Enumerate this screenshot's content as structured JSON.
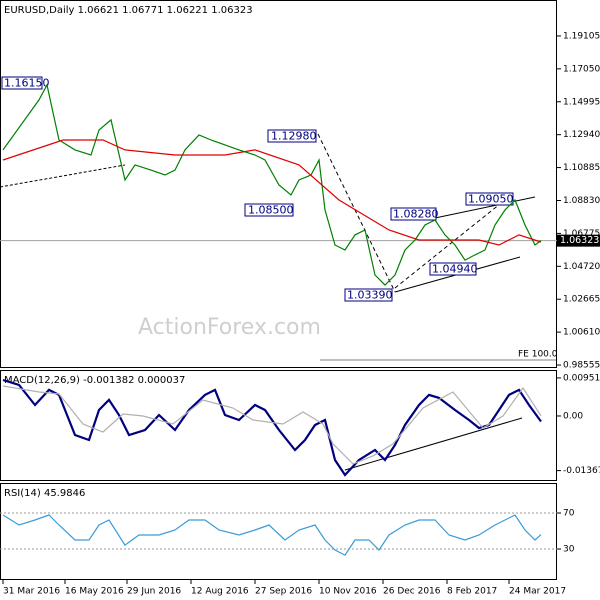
{
  "chart_data": [
    {
      "type": "line",
      "title": "EURUSD,Daily  1.06621 1.06771 1.06221 1.06323",
      "xlim": [
        -1.5,
        277
      ],
      "ylim": [
        0.9837,
        1.2135
      ],
      "yticks": [
        {
          "value": 1.19105,
          "label": "1.19105"
        },
        {
          "value": 1.1705,
          "label": "1.17050"
        },
        {
          "value": 1.14995,
          "label": "1.14995"
        },
        {
          "value": 1.1294,
          "label": "1.12940"
        },
        {
          "value": 1.10885,
          "label": "1.10885"
        },
        {
          "value": 1.0883,
          "label": "1.08830"
        },
        {
          "value": 1.06775,
          "label": "1.06775"
        },
        {
          "value": 1.0472,
          "label": "1.04720"
        },
        {
          "value": 1.02665,
          "label": "1.02665"
        },
        {
          "value": 1.0061,
          "label": "1.00610"
        },
        {
          "value": 0.98555,
          "label": "0.98555"
        }
      ],
      "last_price": 1.06323,
      "annotations": [
        "1.16150",
        "1.12980",
        "1.08500",
        "1.08280",
        "1.09050",
        "1.04940",
        "1.03390",
        "FE 100.0",
        "ActionForex.com"
      ],
      "series": [
        {
          "color": "#008000",
          "x": [
            0,
            18,
            22,
            28,
            36,
            44,
            48,
            54,
            61,
            66,
            74,
            81,
            86,
            91,
            98,
            104,
            111,
            118,
            126,
            131,
            138,
            144,
            148,
            154,
            158,
            161,
            166,
            171,
            176,
            181,
            186,
            191,
            196,
            201,
            206,
            211,
            216,
            221,
            226,
            231,
            236,
            241,
            246,
            251,
            256,
            261,
            266,
            269
          ],
          "values": [
            1.1199,
            1.1511,
            1.1604,
            1.1261,
            1.1199,
            1.1167,
            1.1323,
            1.1386,
            1.1011,
            1.1105,
            1.1073,
            1.1042,
            1.1073,
            1.1199,
            1.1292,
            1.1261,
            1.123,
            1.1199,
            1.1167,
            1.1136,
            1.098,
            1.0917,
            1.1011,
            1.1042,
            1.1136,
            1.0824,
            1.0605,
            1.0574,
            1.0668,
            1.0699,
            1.0418,
            1.0355,
            1.0418,
            1.0574,
            1.0636,
            1.073,
            1.0761,
            1.0668,
            1.0605,
            1.0511,
            1.0543,
            1.0574,
            1.073,
            1.0824,
            1.0886,
            1.073,
            1.0605,
            1.06323
          ]
        },
        {
          "color": "#e00000",
          "x": [
            0,
            30,
            50,
            61,
            86,
            111,
            126,
            148,
            168,
            193,
            208,
            238,
            248,
            258,
            269
          ],
          "values": [
            1.1136,
            1.1261,
            1.1261,
            1.1199,
            1.1167,
            1.1167,
            1.1199,
            1.1105,
            1.0886,
            1.0699,
            1.0636,
            1.0636,
            1.0605,
            1.0668,
            1.0624
          ]
        }
      ]
    },
    {
      "type": "line",
      "title": "MACD(12,26,9) -0.001382 0.000037",
      "xlim": [
        -1.5,
        277
      ],
      "ylim": [
        -0.01627,
        0.0115
      ],
      "yticks": [
        0.009514,
        {
          "value": 0,
          "label": "0.00"
        },
        -0.013671
      ],
      "series": [
        {
          "color": "#000080",
          "x": [
            0,
            8,
            16,
            23,
            28,
            36,
            43,
            48,
            53,
            58,
            63,
            71,
            78,
            86,
            93,
            101,
            106,
            111,
            118,
            126,
            131,
            138,
            146,
            151,
            156,
            161,
            166,
            171,
            178,
            186,
            191,
            196,
            201,
            208,
            213,
            218,
            226,
            233,
            238,
            243,
            248,
            253,
            258,
            263,
            269
          ],
          "values": [
            0.00901,
            0.00776,
            0.00275,
            0.00651,
            0.00526,
            -0.00476,
            -0.00601,
            0.0015,
            0.00401,
            0.00025,
            -0.00476,
            -0.00351,
            0.00025,
            -0.00351,
            0.0015,
            0.00526,
            0.00651,
            0.00025,
            -0.001,
            0.00275,
            0.0015,
            -0.00351,
            -0.00851,
            -0.00601,
            -0.00225,
            -0.001,
            -0.01102,
            -0.01477,
            -0.01102,
            -0.00851,
            -0.01102,
            -0.00726,
            -0.00225,
            0.00275,
            0.00526,
            0.00451,
            0.0015,
            -0.001,
            -0.003,
            -0.00225,
            0.0015,
            0.00526,
            0.00651,
            0.00275,
            -0.00138
          ]
        },
        {
          "color": "#b0b0b0",
          "x": [
            0,
            18,
            28,
            40,
            50,
            60,
            70,
            85,
            100,
            115,
            125,
            140,
            150,
            160,
            165,
            175,
            185,
            195,
            210,
            225,
            240,
            250,
            260,
            269
          ],
          "values": [
            0.0075,
            0.006,
            0.0055,
            -0.002,
            -0.004,
            0.0005,
            0.0,
            -0.002,
            0.004,
            0.002,
            -0.001,
            -0.002,
            0.001,
            -0.002,
            -0.007,
            -0.012,
            -0.01,
            -0.007,
            0.002,
            0.006,
            -0.003,
            0.0,
            0.007,
            3.7e-05
          ]
        }
      ]
    },
    {
      "type": "line",
      "title": "RSI(14) 45.9846",
      "xlim": [
        -1.5,
        277
      ],
      "ylim": [
        -4.4,
        103.3
      ],
      "yticks": [
        70,
        30
      ],
      "grid": true,
      "xticks": [
        {
          "value": 0,
          "label": "31 Mar 2016"
        },
        {
          "value": 31,
          "label": "16 May 2016"
        },
        {
          "value": 62,
          "label": "29 Jun 2016"
        },
        {
          "value": 94,
          "label": "12 Aug 2016"
        },
        {
          "value": 126,
          "label": "27 Sep 2016"
        },
        {
          "value": 158,
          "label": "10 Nov 2016"
        },
        {
          "value": 190,
          "label": "26 Dec 2016"
        },
        {
          "value": 222,
          "label": "8 Feb 2017"
        },
        {
          "value": 253,
          "label": "24 Mar 2017"
        }
      ],
      "series": [
        {
          "color": "#3a9bd9",
          "x": [
            0,
            8,
            16,
            23,
            28,
            36,
            43,
            48,
            53,
            61,
            68,
            78,
            86,
            93,
            101,
            108,
            118,
            126,
            133,
            141,
            148,
            156,
            161,
            166,
            171,
            176,
            183,
            188,
            193,
            201,
            208,
            216,
            223,
            231,
            238,
            246,
            251,
            256,
            261,
            266,
            269
          ],
          "values": [
            67.8,
            56.7,
            62.2,
            67.8,
            56.7,
            40,
            40,
            56.7,
            62.2,
            34.4,
            45.6,
            45.6,
            51.1,
            62.2,
            62.2,
            51.1,
            45.6,
            51.1,
            56.7,
            40,
            51.1,
            56.7,
            40,
            28.9,
            23.3,
            40,
            40,
            28.9,
            45.6,
            56.7,
            62.2,
            62.2,
            45.6,
            40,
            45.6,
            56.7,
            62.2,
            67.8,
            51.1,
            40,
            45.9846
          ]
        }
      ]
    }
  ]
}
